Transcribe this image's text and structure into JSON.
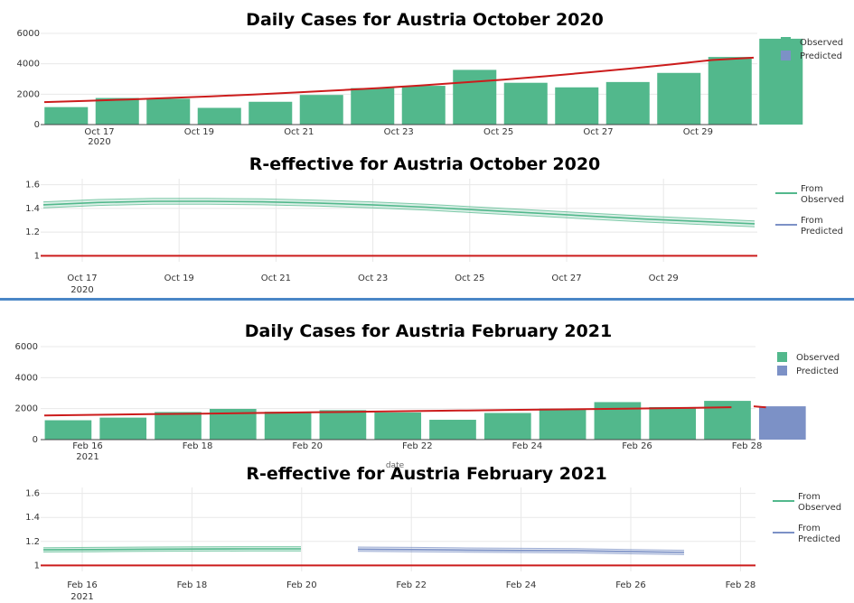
{
  "colors": {
    "observed": "#52b88c",
    "predicted": "#7c91c6",
    "trend": "#cc1c1c",
    "separator": "#4a86c6",
    "grid": "#e8e8e8"
  },
  "chart_data": [
    {
      "type": "bar",
      "title": "Daily Cases for Austria October 2020",
      "ylim": [
        0,
        6000
      ],
      "y_ticks": [
        "0",
        "2000",
        "4000",
        "6000"
      ],
      "x_tick_labels": [
        "Oct 17",
        "Oct 19",
        "Oct 21",
        "Oct 23",
        "Oct 25",
        "Oct 27",
        "Oct 29"
      ],
      "x_year_label": "2020",
      "legend": [
        "Observed",
        "Predicted"
      ],
      "legend_position": "right",
      "categories": [
        "Oct 16",
        "Oct 17",
        "Oct 18",
        "Oct 19",
        "Oct 20",
        "Oct 21",
        "Oct 22",
        "Oct 23",
        "Oct 24",
        "Oct 25",
        "Oct 26",
        "Oct 27",
        "Oct 28",
        "Oct 29",
        "Oct 30"
      ],
      "series": [
        {
          "name": "Observed",
          "values": [
            1150,
            1750,
            1700,
            1100,
            1500,
            1950,
            2400,
            2550,
            3600,
            2750,
            2450,
            2800,
            3400,
            4450,
            5650
          ]
        },
        {
          "name": "Predicted",
          "values": [
            null,
            null,
            null,
            null,
            null,
            null,
            null,
            null,
            null,
            null,
            null,
            null,
            null,
            null,
            null
          ]
        }
      ],
      "trend_values": [
        1480,
        1560,
        1650,
        1750,
        1860,
        1980,
        2110,
        2250,
        2400,
        2570,
        2760,
        2960,
        3180,
        3420,
        3680,
        3950,
        4250,
        4400
      ]
    },
    {
      "type": "line",
      "title": "R-effective for Austria October 2020",
      "ylim": [
        0.95,
        1.65
      ],
      "y_ticks": [
        "1",
        "1.2",
        "1.4",
        "1.6"
      ],
      "x_tick_labels": [
        "Oct 17",
        "Oct 19",
        "Oct 21",
        "Oct 23",
        "Oct 25",
        "Oct 27",
        "Oct 29"
      ],
      "x_year_label": "2020",
      "legend": [
        "From Observed",
        "From Predicted"
      ],
      "legend_position": "right",
      "reference_line": 1,
      "series": [
        {
          "name": "From Observed",
          "center": [
            1.43,
            1.45,
            1.46,
            1.46,
            1.455,
            1.445,
            1.43,
            1.41,
            1.385,
            1.36,
            1.335,
            1.31,
            1.29,
            1.27
          ],
          "band": 0.025
        },
        {
          "name": "From Predicted",
          "center": []
        }
      ]
    },
    {
      "type": "bar",
      "title": "Daily Cases for Austria February 2021",
      "ylim": [
        0,
        6000
      ],
      "y_ticks": [
        "0",
        "2000",
        "4000",
        "6000"
      ],
      "x_tick_labels": [
        "Feb 16",
        "Feb 18",
        "Feb 20",
        "Feb 22",
        "Feb 24",
        "Feb 26",
        "Feb 28"
      ],
      "x_year_label": "2021",
      "x_axis_label": "date",
      "legend": [
        "Observed",
        "Predicted"
      ],
      "legend_position": "right",
      "categories": [
        "Feb 15",
        "Feb 16",
        "Feb 17",
        "Feb 18",
        "Feb 19",
        "Feb 20",
        "Feb 21",
        "Feb 22",
        "Feb 23",
        "Feb 24",
        "Feb 25",
        "Feb 26",
        "Feb 27",
        "Feb 28"
      ],
      "series": [
        {
          "name": "Observed",
          "values": [
            1250,
            1420,
            1780,
            1980,
            1800,
            1900,
            1750,
            1280,
            1720,
            2000,
            2420,
            2100,
            2500,
            null
          ]
        },
        {
          "name": "Predicted",
          "values": [
            null,
            null,
            null,
            null,
            null,
            null,
            null,
            null,
            null,
            null,
            null,
            null,
            null,
            2150
          ]
        }
      ],
      "trend_values": [
        1560,
        1600,
        1640,
        1680,
        1720,
        1760,
        1800,
        1840,
        1880,
        1920,
        1960,
        2000,
        2040,
        2090
      ],
      "trend_extra": [
        2080,
        2150
      ]
    },
    {
      "type": "line",
      "title": "R-effective for Austria February 2021",
      "ylim": [
        0.95,
        1.65
      ],
      "y_ticks": [
        "1",
        "1.2",
        "1.4",
        "1.6"
      ],
      "x_tick_labels": [
        "Feb 16",
        "Feb 18",
        "Feb 20",
        "Feb 22",
        "Feb 24",
        "Feb 26",
        "Feb 28"
      ],
      "x_year_label": "2021",
      "legend": [
        "From Observed",
        "From Predicted"
      ],
      "legend_position": "right",
      "reference_line": 1,
      "series": [
        {
          "name": "From Observed",
          "center": [
            1.13,
            1.132,
            1.135,
            1.137,
            1.138,
            1.138
          ],
          "band": 0.018
        },
        {
          "name": "From Predicted",
          "center": [
            1.135,
            1.132,
            1.128,
            1.125,
            1.122,
            1.115,
            1.108
          ],
          "band": 0.018
        }
      ]
    }
  ]
}
